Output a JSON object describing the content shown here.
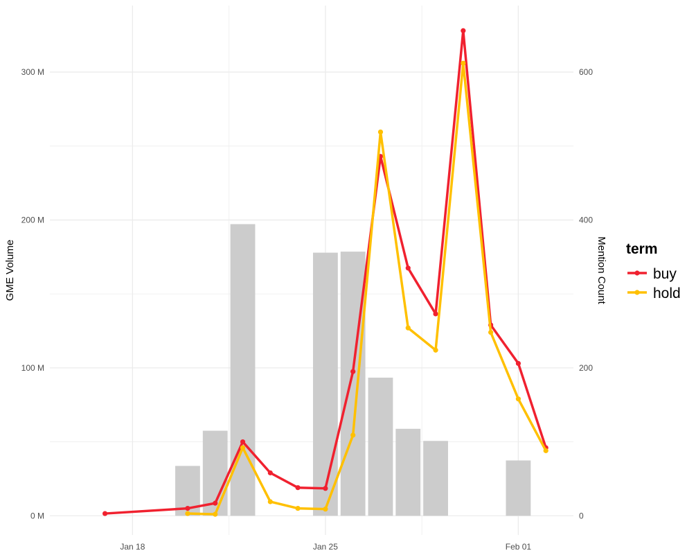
{
  "chart_data": {
    "type": "bar+line",
    "title": "",
    "xlabel": "",
    "y_left_label": "GME Volume",
    "y_right_label": "Mention Count",
    "x_ticks": [
      {
        "date": "2021-01-18",
        "label": "Jan 18"
      },
      {
        "date": "2021-01-25",
        "label": "Jan 25"
      },
      {
        "date": "2021-02-01",
        "label": "Feb 01"
      }
    ],
    "x_range": [
      "2021-01-15",
      "2021-02-03"
    ],
    "y_left": {
      "range": [
        -13000000,
        345000000
      ],
      "ticks": [
        0,
        100000000,
        200000000,
        300000000
      ],
      "tick_labels": [
        "0 M",
        "100 M",
        "200 M",
        "300 M"
      ]
    },
    "y_right": {
      "range": [
        -26,
        690
      ],
      "ticks": [
        0,
        200,
        400,
        600
      ],
      "tick_labels": [
        "0",
        "200",
        "400",
        "600"
      ]
    },
    "grid": true,
    "bars": {
      "name": "GME Volume",
      "axis": "left",
      "color": "#cccccc",
      "points": [
        {
          "date": "2021-01-20",
          "value": 33700000
        },
        {
          "date": "2021-01-21",
          "value": 57500000
        },
        {
          "date": "2021-01-22",
          "value": 197200000
        },
        {
          "date": "2021-01-25",
          "value": 177900000
        },
        {
          "date": "2021-01-26",
          "value": 178600000
        },
        {
          "date": "2021-01-27",
          "value": 93400000
        },
        {
          "date": "2021-01-28",
          "value": 58800000
        },
        {
          "date": "2021-01-29",
          "value": 50600000
        },
        {
          "date": "2021-02-01",
          "value": 37400000
        }
      ]
    },
    "series": [
      {
        "name": "buy",
        "axis": "right",
        "color": "#f0212f",
        "points": [
          {
            "date": "2021-01-17",
            "value": 3
          },
          {
            "date": "2021-01-20",
            "value": 10
          },
          {
            "date": "2021-01-21",
            "value": 17
          },
          {
            "date": "2021-01-22",
            "value": 100
          },
          {
            "date": "2021-01-23",
            "value": 58
          },
          {
            "date": "2021-01-24",
            "value": 38
          },
          {
            "date": "2021-01-25",
            "value": 37
          },
          {
            "date": "2021-01-26",
            "value": 195
          },
          {
            "date": "2021-01-27",
            "value": 486
          },
          {
            "date": "2021-01-28",
            "value": 335
          },
          {
            "date": "2021-01-29",
            "value": 273
          },
          {
            "date": "2021-01-30",
            "value": 656
          },
          {
            "date": "2021-01-31",
            "value": 258
          },
          {
            "date": "2021-02-01",
            "value": 206
          },
          {
            "date": "2021-02-02",
            "value": 92
          }
        ]
      },
      {
        "name": "hold",
        "axis": "right",
        "color": "#ffc000",
        "points": [
          {
            "date": "2021-01-20",
            "value": 3
          },
          {
            "date": "2021-01-21",
            "value": 2
          },
          {
            "date": "2021-01-22",
            "value": 92
          },
          {
            "date": "2021-01-23",
            "value": 19
          },
          {
            "date": "2021-01-24",
            "value": 10
          },
          {
            "date": "2021-01-25",
            "value": 9
          },
          {
            "date": "2021-01-26",
            "value": 109
          },
          {
            "date": "2021-01-27",
            "value": 519
          },
          {
            "date": "2021-01-28",
            "value": 254
          },
          {
            "date": "2021-01-29",
            "value": 224
          },
          {
            "date": "2021-01-30",
            "value": 612
          },
          {
            "date": "2021-01-31",
            "value": 248
          },
          {
            "date": "2021-02-01",
            "value": 158
          },
          {
            "date": "2021-02-02",
            "value": 88
          }
        ]
      }
    ],
    "legend": {
      "title": "term",
      "placement": "right",
      "entries": [
        {
          "label": "buy",
          "color": "#f0212f"
        },
        {
          "label": "hold",
          "color": "#ffc000"
        }
      ]
    }
  }
}
